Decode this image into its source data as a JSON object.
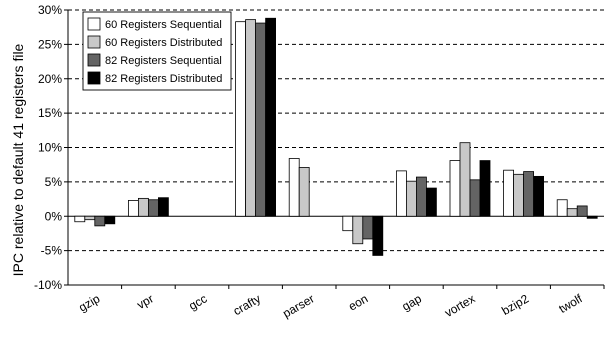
{
  "chart_data": {
    "type": "bar",
    "title": "",
    "xlabel": "",
    "ylabel": "IPC relative to default 41 registers file",
    "ylim": [
      -10,
      30
    ],
    "yticks": [
      -10,
      -5,
      0,
      5,
      10,
      15,
      20,
      25,
      30
    ],
    "ytick_labels": [
      "-10%",
      "-5%",
      "0%",
      "5%",
      "10%",
      "15%",
      "20%",
      "25%",
      "30%"
    ],
    "grid": "horizontal-dashed",
    "legend_position": "top-left",
    "categories": [
      "gzip",
      "vpr",
      "gcc",
      "crafty",
      "parser",
      "eon",
      "gap",
      "vortex",
      "bzip2",
      "twolf"
    ],
    "series": [
      {
        "name": "60 Registers Sequential",
        "color": "#ffffff",
        "values": [
          -0.8,
          2.3,
          0,
          28.3,
          8.4,
          -2.1,
          6.6,
          8.1,
          6.7,
          2.4
        ]
      },
      {
        "name": "60 Registers Distributed",
        "color": "#c8c8c8",
        "values": [
          -0.5,
          2.6,
          0,
          28.6,
          7.1,
          -4.0,
          5.1,
          10.7,
          6.1,
          1.1
        ]
      },
      {
        "name": "82 Registers Sequential",
        "color": "#646464",
        "values": [
          -1.4,
          2.4,
          0,
          28.1,
          null,
          -3.3,
          5.7,
          5.3,
          6.5,
          1.5
        ]
      },
      {
        "name": "82 Registers Distributed",
        "color": "#000000",
        "values": [
          -1.1,
          2.7,
          0,
          28.8,
          null,
          -5.7,
          4.1,
          8.1,
          5.8,
          -0.3
        ]
      }
    ]
  }
}
